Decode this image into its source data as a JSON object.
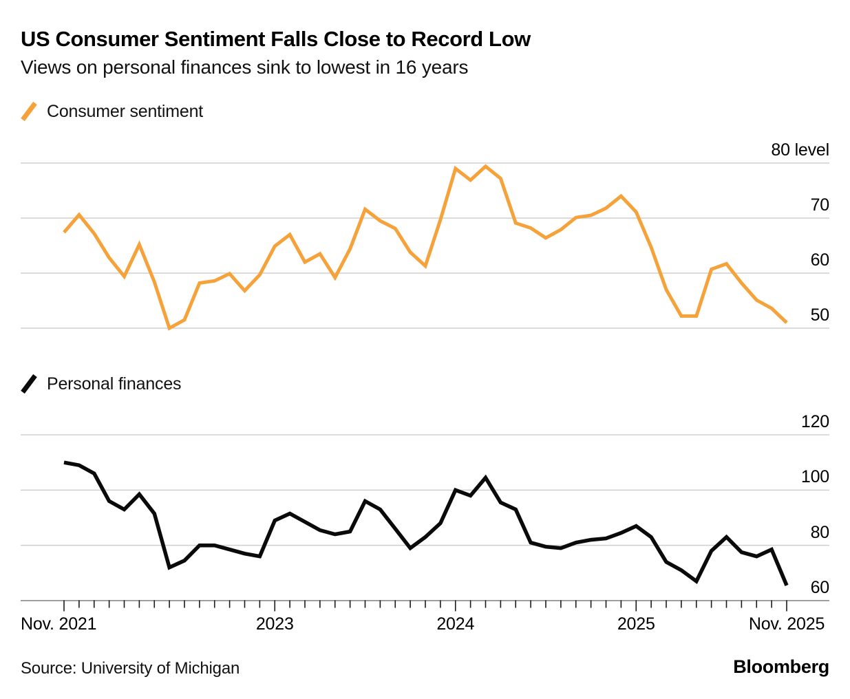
{
  "header": {
    "title": "US Consumer Sentiment Falls Close to Record Low",
    "subtitle": "Views on personal finances sink to lowest in 16 years"
  },
  "colors": {
    "sentiment_orange": "#F6A23B",
    "finances_black": "#0A0A0A",
    "gridline_gray": "#CFCFCF",
    "axis_gray": "#9E9E9E",
    "tick_dark": "#1A1A1A"
  },
  "chart_data": [
    {
      "type": "line",
      "legend": "Consumer sentiment",
      "color": "#F6A23B",
      "x": {
        "start": "Nov. 2021",
        "end": "Nov. 2025",
        "frequency": "monthly",
        "points": 49
      },
      "ylim": [
        47,
        83
      ],
      "grid": true,
      "y_ticks": [
        {
          "label": "80 level",
          "value": 80
        },
        {
          "label": "70",
          "value": 70
        },
        {
          "label": "60",
          "value": 60
        },
        {
          "label": "50",
          "value": 50
        }
      ],
      "values": [
        67.4,
        70.6,
        67.2,
        62.8,
        59.4,
        65.2,
        58.4,
        50.0,
        51.5,
        58.2,
        58.6,
        59.9,
        56.8,
        59.7,
        64.9,
        67.0,
        62.0,
        63.5,
        59.2,
        64.4,
        71.6,
        69.5,
        68.1,
        63.8,
        61.3,
        69.7,
        79.0,
        76.9,
        79.4,
        77.2,
        69.1,
        68.2,
        66.4,
        67.9,
        70.1,
        70.5,
        71.8,
        74.0,
        71.1,
        64.7,
        57.0,
        52.2,
        52.2,
        60.7,
        61.7,
        58.2,
        55.1,
        53.6,
        51.0
      ]
    },
    {
      "type": "line",
      "legend": "Personal finances",
      "color": "#0A0A0A",
      "x": {
        "start": "Nov. 2021",
        "end": "Nov. 2025",
        "frequency": "monthly",
        "points": 49
      },
      "ylim": [
        58,
        122
      ],
      "grid": true,
      "y_ticks": [
        {
          "label": "120",
          "value": 120
        },
        {
          "label": "100",
          "value": 100
        },
        {
          "label": "80",
          "value": 80
        },
        {
          "label": "60",
          "value": 60
        }
      ],
      "values": [
        110,
        109,
        106,
        96,
        93,
        98.5,
        91.5,
        72,
        74.5,
        80,
        80,
        78.5,
        77,
        76,
        89,
        91.5,
        88.5,
        85.5,
        84,
        85,
        96,
        93,
        86,
        79,
        83,
        88,
        100,
        98,
        104.5,
        95.5,
        93,
        81,
        79.5,
        79,
        81,
        82,
        82.5,
        84.5,
        87,
        83,
        74,
        71,
        67,
        78,
        83,
        77.5,
        76,
        78.5,
        65.5
      ]
    }
  ],
  "x_axis": {
    "tick_labels": [
      {
        "label": "Nov. 2021",
        "month": 0
      },
      {
        "label": "2023",
        "month": 14
      },
      {
        "label": "2024",
        "month": 26
      },
      {
        "label": "2025",
        "month": 38
      },
      {
        "label": "Nov. 2025",
        "month": 48
      }
    ]
  },
  "footer": {
    "source": "Source: University of Michigan",
    "brand": "Bloomberg"
  }
}
